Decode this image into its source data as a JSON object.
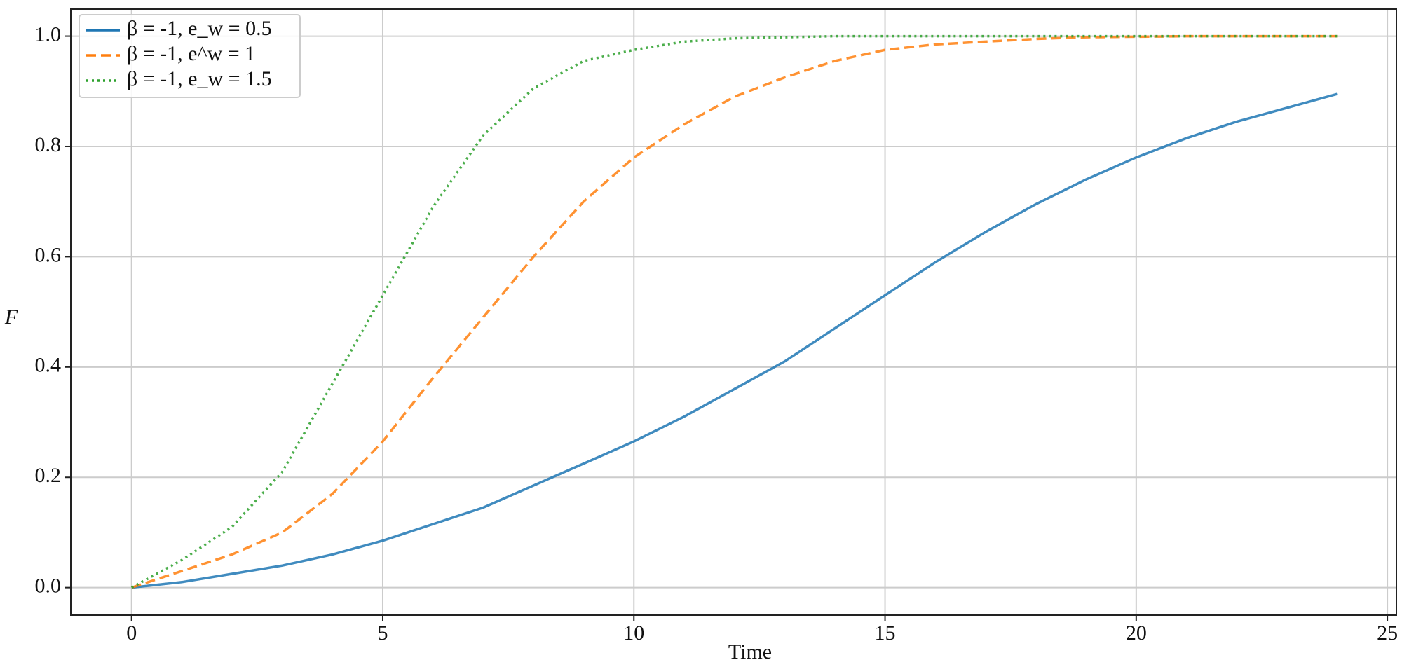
{
  "chart_data": {
    "type": "line",
    "x_label": "Time",
    "y_label": "F",
    "x": [
      0,
      1,
      2,
      3,
      4,
      5,
      6,
      7,
      8,
      9,
      10,
      11,
      12,
      13,
      14,
      15,
      16,
      17,
      18,
      19,
      20,
      21,
      22,
      23,
      24
    ],
    "series": [
      {
        "name": "β = -1, e_w = 0.5",
        "color": "#1f77b4",
        "style": "solid",
        "values": [
          0,
          0.01,
          0.025,
          0.04,
          0.06,
          0.085,
          0.115,
          0.145,
          0.185,
          0.225,
          0.265,
          0.31,
          0.36,
          0.41,
          0.47,
          0.53,
          0.59,
          0.645,
          0.695,
          0.74,
          0.78,
          0.815,
          0.845,
          0.87,
          0.895
        ]
      },
      {
        "name": "β = -1, e^w = 1",
        "color": "#ff7f0e",
        "style": "dashed",
        "values": [
          0,
          0.03,
          0.06,
          0.1,
          0.17,
          0.265,
          0.38,
          0.49,
          0.6,
          0.7,
          0.78,
          0.84,
          0.89,
          0.925,
          0.955,
          0.975,
          0.985,
          0.99,
          0.995,
          0.998,
          0.999,
          1,
          1,
          1,
          1
        ]
      },
      {
        "name": "β = -1, e_w = 1.5",
        "color": "#2ca02c",
        "style": "dotted",
        "values": [
          0,
          0.05,
          0.11,
          0.21,
          0.37,
          0.53,
          0.69,
          0.82,
          0.905,
          0.955,
          0.975,
          0.99,
          0.996,
          0.998,
          1,
          1,
          1,
          1,
          1,
          1,
          1,
          1,
          1,
          1,
          1
        ]
      }
    ],
    "xlim": [
      -1.21,
      25.18
    ],
    "ylim": [
      -0.05,
      1.049
    ],
    "xticks": [
      0,
      5,
      10,
      15,
      20,
      25
    ],
    "yticks": [
      {
        "value": 0,
        "label": "0.0"
      },
      {
        "value": 0.2,
        "label": "0.2"
      },
      {
        "value": 0.4,
        "label": "0.4"
      },
      {
        "value": 0.6,
        "label": "0.6"
      },
      {
        "value": 0.8,
        "label": "0.8"
      },
      {
        "value": 1,
        "label": "1.0"
      }
    ],
    "grid": true,
    "legend": "upper left"
  }
}
